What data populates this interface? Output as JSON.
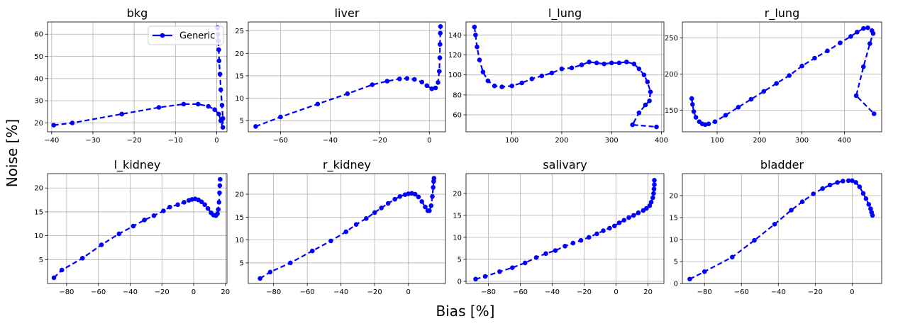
{
  "figure": {
    "xlabel": "Bias [%]",
    "ylabel": "Noise [%]",
    "legend_label": "Generic",
    "line_color": "#0000ff",
    "grid": true
  },
  "chart_data": [
    {
      "type": "line",
      "title": "bkg",
      "xlim": [
        -41,
        2.5
      ],
      "ylim": [
        16,
        65.5
      ],
      "xticks": [
        -40,
        -30,
        -20,
        -10,
        0
      ],
      "yticks": [
        20,
        30,
        40,
        50,
        60
      ],
      "legend": "top-right",
      "series": [
        {
          "name": "Generic",
          "x": [
            -39.5,
            -35,
            -23,
            -14,
            -8,
            -4.5,
            -2,
            -0.5,
            0.5,
            1,
            1.5,
            1.5,
            1.3,
            1.0,
            0.8,
            0.6,
            0.5,
            0.4,
            0.3,
            0.2
          ],
          "y": [
            19,
            20,
            24,
            27,
            28.5,
            28.5,
            27.5,
            26,
            24,
            21,
            18,
            22,
            28,
            35,
            42,
            48,
            53,
            57,
            60,
            63
          ]
        }
      ]
    },
    {
      "type": "line",
      "title": "liver",
      "xlim": [
        -73,
        6.5
      ],
      "ylim": [
        2.5,
        27
      ],
      "xticks": [
        -60,
        -40,
        -20,
        0
      ],
      "yticks": [
        5,
        10,
        15,
        20,
        25
      ],
      "series": [
        {
          "name": "Generic",
          "x": [
            -70,
            -60,
            -45,
            -33,
            -23,
            -17,
            -12,
            -9,
            -6,
            -3,
            -1,
            1,
            2.5,
            3.5,
            4,
            4.2,
            4.3,
            4.4,
            4.5
          ],
          "y": [
            3.7,
            5.8,
            8.7,
            11,
            13,
            13.8,
            14.3,
            14.4,
            14.2,
            13.6,
            12.8,
            12.1,
            12.3,
            13.5,
            16,
            19,
            22,
            24.5,
            26
          ]
        }
      ]
    },
    {
      "type": "line",
      "title": "l_lung",
      "xlim": [
        8,
        405
      ],
      "ylim": [
        43,
        153
      ],
      "xticks": [
        100,
        200,
        300,
        400
      ],
      "yticks": [
        60,
        80,
        100,
        120,
        140
      ],
      "series": [
        {
          "name": "Generic",
          "x": [
            25,
            27,
            30,
            35,
            42,
            52,
            65,
            80,
            100,
            120,
            140,
            160,
            180,
            200,
            220,
            240,
            255,
            270,
            285,
            300,
            315,
            330,
            345,
            355,
            365,
            372,
            378,
            376,
            368,
            355,
            342,
            390
          ],
          "y": [
            148,
            140,
            128,
            115,
            103,
            94,
            89,
            88,
            89,
            92,
            96,
            99,
            102,
            106,
            107,
            110,
            113,
            112,
            111,
            112,
            112,
            113,
            111,
            106,
            100,
            93,
            83,
            74,
            70,
            62,
            50,
            48
          ]
        }
      ]
    },
    {
      "type": "line",
      "title": "r_lung",
      "xlim": [
        18,
        488
      ],
      "ylim": [
        120,
        272
      ],
      "xticks": [
        100,
        200,
        300,
        400
      ],
      "yticks": [
        150,
        200,
        250
      ],
      "series": [
        {
          "name": "Generic",
          "x": [
            40,
            42,
            45,
            50,
            58,
            65,
            72,
            80,
            95,
            120,
            150,
            180,
            210,
            240,
            270,
            300,
            330,
            360,
            390,
            415,
            430,
            445,
            455,
            465,
            468,
            460,
            445,
            428,
            470
          ],
          "y": [
            166,
            158,
            148,
            140,
            134,
            131,
            130,
            131,
            134,
            143,
            154,
            165,
            176,
            187,
            198,
            211,
            222,
            232,
            243,
            252,
            258,
            263,
            264,
            260,
            256,
            242,
            210,
            170,
            145
          ]
        }
      ]
    },
    {
      "type": "line",
      "title": "l_kidney",
      "xlim": [
        -92,
        21
      ],
      "ylim": [
        0,
        23
      ],
      "xticks": [
        -80,
        -60,
        -40,
        -20,
        0,
        20
      ],
      "yticks": [
        5,
        10,
        15,
        20
      ],
      "series": [
        {
          "name": "Generic",
          "x": [
            -88,
            -83,
            -70,
            -58,
            -47,
            -38,
            -31,
            -25,
            -19,
            -15,
            -10,
            -6,
            -3,
            -1,
            1,
            3,
            5,
            7,
            9,
            11,
            12.5,
            14,
            15,
            15.5,
            16,
            16.3,
            16.5,
            16.7
          ],
          "y": [
            1.2,
            2.8,
            5.3,
            8.1,
            10.4,
            12,
            13.3,
            14.2,
            15.2,
            16,
            16.5,
            17,
            17.4,
            17.6,
            17.7,
            17.5,
            17.1,
            16.5,
            15.7,
            14.8,
            14.3,
            14.2,
            14.6,
            15.5,
            17,
            19,
            20.5,
            21.8
          ]
        }
      ]
    },
    {
      "type": "line",
      "title": "r_kidney",
      "xlim": [
        -95,
        22
      ],
      "ylim": [
        0.5,
        24.5
      ],
      "xticks": [
        -80,
        -60,
        -40,
        -20,
        0
      ],
      "yticks": [
        5,
        10,
        15,
        20
      ],
      "series": [
        {
          "name": "Generic",
          "x": [
            -88,
            -82,
            -70,
            -57,
            -46,
            -37,
            -31,
            -25,
            -20,
            -16,
            -12,
            -8,
            -5,
            -2,
            0,
            2,
            4,
            6,
            8,
            10,
            11.5,
            12.5,
            13.5,
            14.2,
            14.7,
            15,
            15.2
          ],
          "y": [
            1.6,
            3,
            5,
            7.6,
            9.8,
            11.8,
            13.4,
            14.7,
            16,
            17,
            18,
            18.9,
            19.5,
            19.9,
            20.1,
            20.2,
            20,
            19.4,
            18.4,
            17.2,
            16.4,
            16.4,
            17.5,
            19.5,
            21.5,
            22.8,
            23.5
          ]
        }
      ]
    },
    {
      "type": "line",
      "title": "salivary",
      "xlim": [
        -94,
        30
      ],
      "ylim": [
        -0.5,
        24.5
      ],
      "xticks": [
        -80,
        -60,
        -40,
        -20,
        0,
        20
      ],
      "yticks": [
        0,
        5,
        10,
        15,
        20
      ],
      "series": [
        {
          "name": "Generic",
          "x": [
            -88,
            -82,
            -73,
            -65,
            -57,
            -50,
            -44,
            -38,
            -32,
            -27,
            -22,
            -17,
            -12,
            -8,
            -4,
            -1,
            2,
            5,
            8,
            11,
            14,
            17,
            19,
            21,
            22,
            23,
            23.5,
            23.8,
            24,
            24
          ],
          "y": [
            0.5,
            1.1,
            2.2,
            3.1,
            4.2,
            5.4,
            6.3,
            7,
            8,
            8.7,
            9.3,
            10,
            10.8,
            11.5,
            12.1,
            12.6,
            13.3,
            13.9,
            14.5,
            15,
            15.6,
            16.1,
            16.6,
            17.2,
            18,
            19,
            20,
            21,
            22,
            23
          ]
        }
      ]
    },
    {
      "type": "line",
      "title": "bladder",
      "xlim": [
        -92,
        16
      ],
      "ylim": [
        0,
        25
      ],
      "xticks": [
        -80,
        -60,
        -40,
        -20,
        0
      ],
      "yticks": [
        0,
        5,
        10,
        15,
        20
      ],
      "series": [
        {
          "name": "Generic",
          "x": [
            -88,
            -80,
            -65,
            -53,
            -42,
            -33,
            -27,
            -21,
            -16,
            -12,
            -8,
            -5,
            -2,
            0,
            2,
            4,
            6,
            7.5,
            9,
            10,
            10.5,
            11
          ],
          "y": [
            1,
            2.7,
            6,
            9.8,
            13.5,
            16.7,
            18.6,
            20.4,
            21.6,
            22.4,
            23,
            23.3,
            23.4,
            23.4,
            23,
            22,
            20.5,
            19.3,
            18,
            17,
            16.2,
            15.5
          ]
        }
      ]
    }
  ]
}
